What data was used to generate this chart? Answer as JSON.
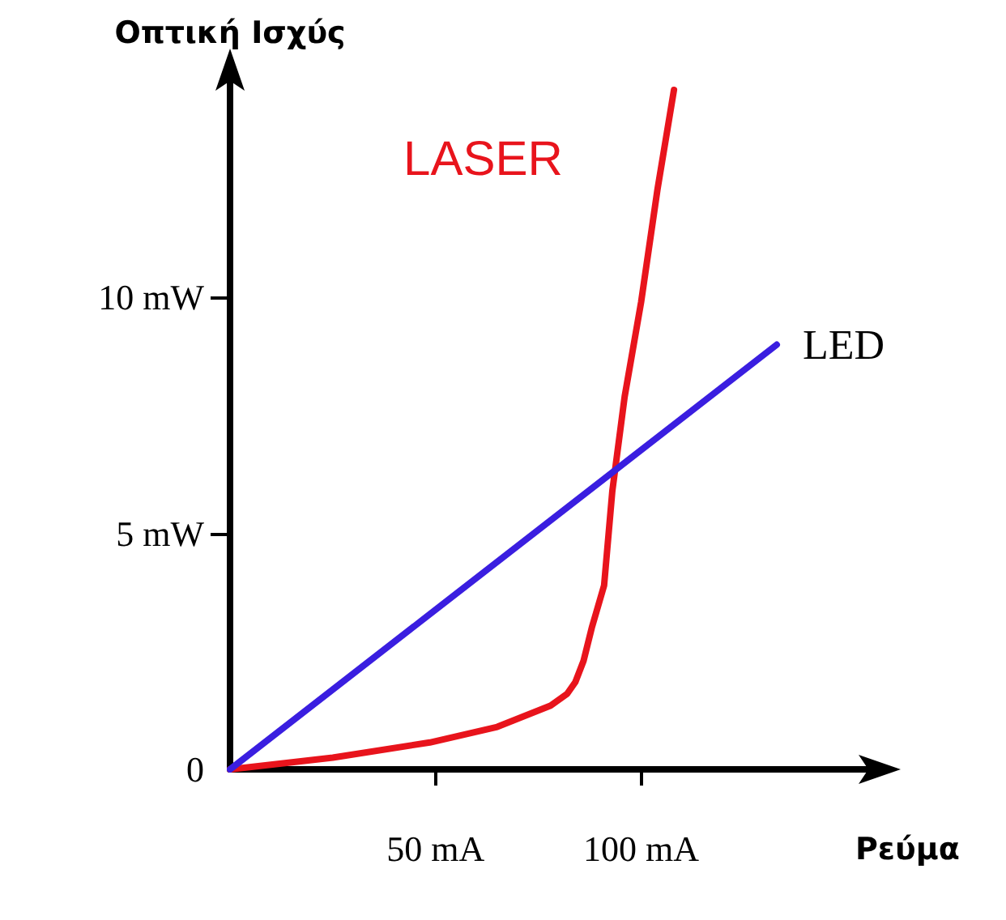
{
  "chart_data": {
    "type": "line",
    "xlabel": "Ρεύμα",
    "ylabel": "Οπτική Ισχύς",
    "xlim": [
      0,
      160
    ],
    "xticks": [
      {
        "value": 50,
        "label": "50 mA"
      },
      {
        "value": 100,
        "label": "100 mA"
      }
    ],
    "ylim": [
      0,
      15
    ],
    "yticks": [
      {
        "value": 0,
        "label": "0"
      },
      {
        "value": 5,
        "label": "5 mW"
      },
      {
        "value": 10,
        "label": "10 mW"
      }
    ],
    "grid": false,
    "legend": false,
    "marker": "none",
    "line_style": "solid",
    "series": [
      {
        "name": "LASER",
        "color": "#e8141c",
        "x": [
          0,
          25,
          48.6,
          65,
          78,
          82,
          84,
          86,
          88,
          91,
          93,
          96,
          100,
          104,
          108
        ],
        "values": [
          0,
          0.25,
          0.57,
          0.9,
          1.35,
          1.6,
          1.85,
          2.3,
          3.0,
          3.9,
          5.9,
          7.9,
          9.9,
          12.3,
          14.4
        ]
      },
      {
        "name": "LED",
        "color": "#3a1ee0",
        "x": [
          0,
          133
        ],
        "values": [
          0,
          9.0
        ]
      }
    ]
  }
}
